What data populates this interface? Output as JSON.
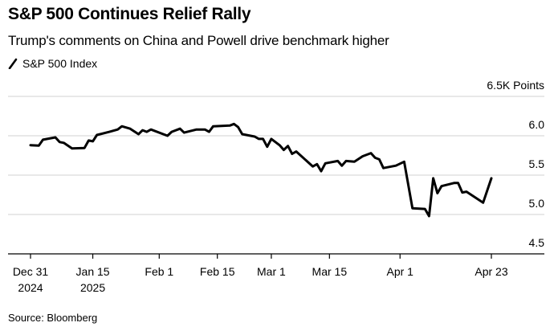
{
  "title": "S&P 500 Continues Relief Rally",
  "subtitle": "Trump's comments on China and Powell drive benchmark higher",
  "legend": [
    {
      "label": "S&P 500 Index",
      "icon": "line-swatch-icon",
      "color": "#000000"
    }
  ],
  "source": "Source: Bloomberg",
  "chart_data": {
    "type": "line",
    "title": "S&P 500 Continues Relief Rally",
    "subtitle": "Trump's comments on China and Powell drive benchmark higher",
    "xlabel": "",
    "ylabel": "Points",
    "y_unit_label": "6.5K Points",
    "ylim": [
      4500,
      6500
    ],
    "y_ticks": [
      {
        "value": 6500,
        "label": "6.5K Points"
      },
      {
        "value": 6000,
        "label": "6.0"
      },
      {
        "value": 5500,
        "label": "5.5"
      },
      {
        "value": 5000,
        "label": "5.0"
      },
      {
        "value": 4500,
        "label": "4.5"
      }
    ],
    "x_ticks": [
      {
        "index": 0,
        "label": [
          "Dec 31",
          "2024"
        ]
      },
      {
        "index": 15,
        "label": [
          "Jan 15",
          "2025"
        ]
      },
      {
        "index": 31,
        "label": [
          "Feb 1"
        ]
      },
      {
        "index": 45,
        "label": [
          "Feb 15"
        ]
      },
      {
        "index": 58,
        "label": [
          "Mar 1"
        ]
      },
      {
        "index": 72,
        "label": [
          "Mar 15"
        ]
      },
      {
        "index": 89,
        "label": [
          "Apr 1"
        ]
      },
      {
        "index": 111,
        "label": [
          "Apr 23"
        ]
      }
    ],
    "grid": true,
    "legend_position": "top-left",
    "series": [
      {
        "name": "S&P 500 Index",
        "color": "#000000",
        "points": [
          [
            0,
            5881
          ],
          [
            2,
            5875
          ],
          [
            3,
            5950
          ],
          [
            6,
            5980
          ],
          [
            7,
            5920
          ],
          [
            8,
            5910
          ],
          [
            10,
            5840
          ],
          [
            13,
            5845
          ],
          [
            14,
            5940
          ],
          [
            15,
            5930
          ],
          [
            16,
            6010
          ],
          [
            19,
            6050
          ],
          [
            21,
            6080
          ],
          [
            22,
            6120
          ],
          [
            24,
            6090
          ],
          [
            26,
            6020
          ],
          [
            27,
            6070
          ],
          [
            28,
            6050
          ],
          [
            29,
            6080
          ],
          [
            33,
            6000
          ],
          [
            34,
            6050
          ],
          [
            36,
            6090
          ],
          [
            37,
            6040
          ],
          [
            40,
            6080
          ],
          [
            42,
            6080
          ],
          [
            43,
            6050
          ],
          [
            44,
            6120
          ],
          [
            48,
            6130
          ],
          [
            49,
            6150
          ],
          [
            50,
            6110
          ],
          [
            51,
            6020
          ],
          [
            54,
            5990
          ],
          [
            55,
            5960
          ],
          [
            56,
            5960
          ],
          [
            57,
            5860
          ],
          [
            58,
            5960
          ],
          [
            60,
            5880
          ],
          [
            61,
            5820
          ],
          [
            62,
            5870
          ],
          [
            63,
            5770
          ],
          [
            64,
            5800
          ],
          [
            68,
            5610
          ],
          [
            69,
            5640
          ],
          [
            70,
            5550
          ],
          [
            71,
            5650
          ],
          [
            74,
            5680
          ],
          [
            75,
            5620
          ],
          [
            76,
            5680
          ],
          [
            78,
            5670
          ],
          [
            80,
            5740
          ],
          [
            82,
            5780
          ],
          [
            83,
            5720
          ],
          [
            84,
            5700
          ],
          [
            85,
            5590
          ],
          [
            88,
            5620
          ],
          [
            90,
            5670
          ],
          [
            92,
            5080
          ],
          [
            95,
            5070
          ],
          [
            96,
            4980
          ],
          [
            97,
            5460
          ],
          [
            98,
            5270
          ],
          [
            99,
            5360
          ],
          [
            102,
            5400
          ],
          [
            103,
            5400
          ],
          [
            104,
            5280
          ],
          [
            105,
            5290
          ],
          [
            109,
            5150
          ],
          [
            111,
            5460
          ]
        ]
      }
    ],
    "x_range": [
      0,
      111
    ]
  }
}
